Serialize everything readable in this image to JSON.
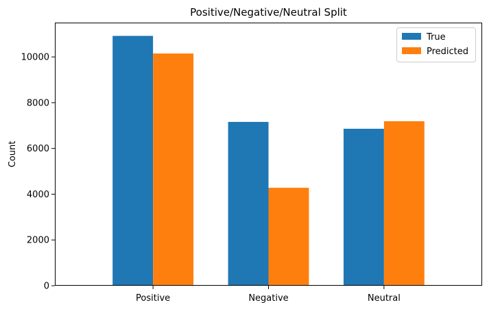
{
  "chart_data": {
    "type": "bar",
    "title": "Positive/Negative/Neutral Split",
    "xlabel": "",
    "ylabel": "Count",
    "categories": [
      "Positive",
      "Negative",
      "Neutral"
    ],
    "series": [
      {
        "name": "True",
        "values": [
          10920,
          7160,
          6860
        ],
        "color": "#1f77b4"
      },
      {
        "name": "Predicted",
        "values": [
          10150,
          4280,
          7190
        ],
        "color": "#ff7f0e"
      }
    ],
    "ylim": [
      0,
      11500
    ],
    "yticks": [
      0,
      2000,
      4000,
      6000,
      8000,
      10000
    ],
    "grid": false,
    "legend_position": "upper right"
  }
}
